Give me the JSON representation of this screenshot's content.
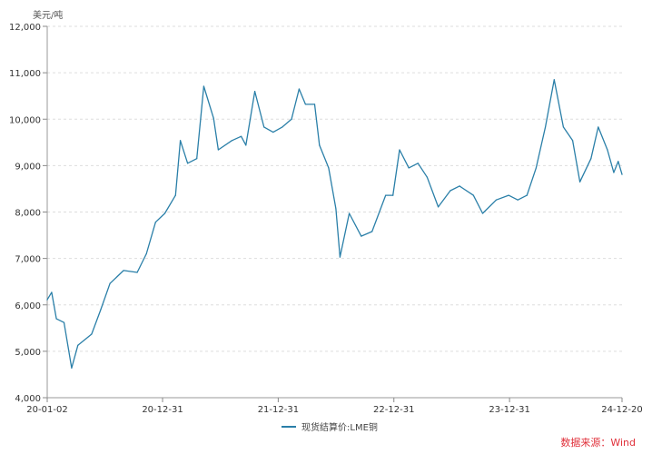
{
  "chart_data": {
    "type": "line",
    "ylabel": "美元/吨",
    "ylim": [
      4000,
      12000
    ],
    "yticks": [
      "4,000",
      "5,000",
      "6,000",
      "7,000",
      "8,000",
      "9,000",
      "10,000",
      "11,000",
      "12,000"
    ],
    "xlim": [
      "2020-01-02",
      "2024-12-20"
    ],
    "xticks": [
      {
        "date": "2020-01-02",
        "label": "20-01-02"
      },
      {
        "date": "2020-12-31",
        "label": "20-12-31"
      },
      {
        "date": "2021-12-31",
        "label": "21-12-31"
      },
      {
        "date": "2022-12-31",
        "label": "22-12-31"
      },
      {
        "date": "2023-12-31",
        "label": "23-12-31"
      },
      {
        "date": "2024-12-20",
        "label": "24-12-20"
      }
    ],
    "grid": true,
    "legend_position": "bottom",
    "series": [
      {
        "name": "现货结算价:LME铜",
        "color": "#2a7fa8",
        "points": [
          [
            "2020-01-02",
            6110
          ],
          [
            "2020-01-16",
            6270
          ],
          [
            "2020-01-31",
            5700
          ],
          [
            "2020-02-24",
            5620
          ],
          [
            "2020-03-19",
            4640
          ],
          [
            "2020-04-08",
            5130
          ],
          [
            "2020-05-21",
            5370
          ],
          [
            "2020-06-19",
            5900
          ],
          [
            "2020-07-18",
            6460
          ],
          [
            "2020-08-30",
            6740
          ],
          [
            "2020-10-12",
            6700
          ],
          [
            "2020-11-10",
            7100
          ],
          [
            "2020-12-09",
            7780
          ],
          [
            "2021-01-07",
            7970
          ],
          [
            "2021-02-10",
            8360
          ],
          [
            "2021-02-25",
            9540
          ],
          [
            "2021-03-20",
            9050
          ],
          [
            "2021-04-18",
            9150
          ],
          [
            "2021-05-10",
            10710
          ],
          [
            "2021-06-10",
            10020
          ],
          [
            "2021-06-25",
            9340
          ],
          [
            "2021-08-07",
            9540
          ],
          [
            "2021-09-05",
            9630
          ],
          [
            "2021-09-20",
            9440
          ],
          [
            "2021-10-18",
            10600
          ],
          [
            "2021-11-16",
            9830
          ],
          [
            "2021-12-15",
            9720
          ],
          [
            "2022-01-13",
            9830
          ],
          [
            "2022-02-11",
            10000
          ],
          [
            "2022-03-07",
            10650
          ],
          [
            "2022-03-27",
            10320
          ],
          [
            "2022-04-25",
            10320
          ],
          [
            "2022-05-10",
            9440
          ],
          [
            "2022-06-08",
            8950
          ],
          [
            "2022-07-01",
            8070
          ],
          [
            "2022-07-14",
            7030
          ],
          [
            "2022-08-12",
            7970
          ],
          [
            "2022-09-19",
            7480
          ],
          [
            "2022-10-23",
            7580
          ],
          [
            "2022-12-05",
            8360
          ],
          [
            "2022-12-28",
            8360
          ],
          [
            "2023-01-18",
            9340
          ],
          [
            "2023-02-16",
            8950
          ],
          [
            "2023-03-17",
            9050
          ],
          [
            "2023-04-15",
            8750
          ],
          [
            "2023-05-20",
            8110
          ],
          [
            "2023-06-27",
            8460
          ],
          [
            "2023-07-26",
            8560
          ],
          [
            "2023-09-08",
            8360
          ],
          [
            "2023-10-07",
            7970
          ],
          [
            "2023-11-19",
            8260
          ],
          [
            "2023-12-28",
            8360
          ],
          [
            "2024-01-26",
            8260
          ],
          [
            "2024-02-24",
            8360
          ],
          [
            "2024-03-24",
            8950
          ],
          [
            "2024-04-22",
            9830
          ],
          [
            "2024-05-20",
            10850
          ],
          [
            "2024-06-18",
            9830
          ],
          [
            "2024-07-17",
            9540
          ],
          [
            "2024-08-09",
            8650
          ],
          [
            "2024-09-13",
            9150
          ],
          [
            "2024-10-06",
            9830
          ],
          [
            "2024-11-04",
            9340
          ],
          [
            "2024-11-24",
            8850
          ],
          [
            "2024-12-08",
            9090
          ],
          [
            "2024-12-20",
            8810
          ]
        ]
      }
    ]
  },
  "source": "数据来源：Wind"
}
